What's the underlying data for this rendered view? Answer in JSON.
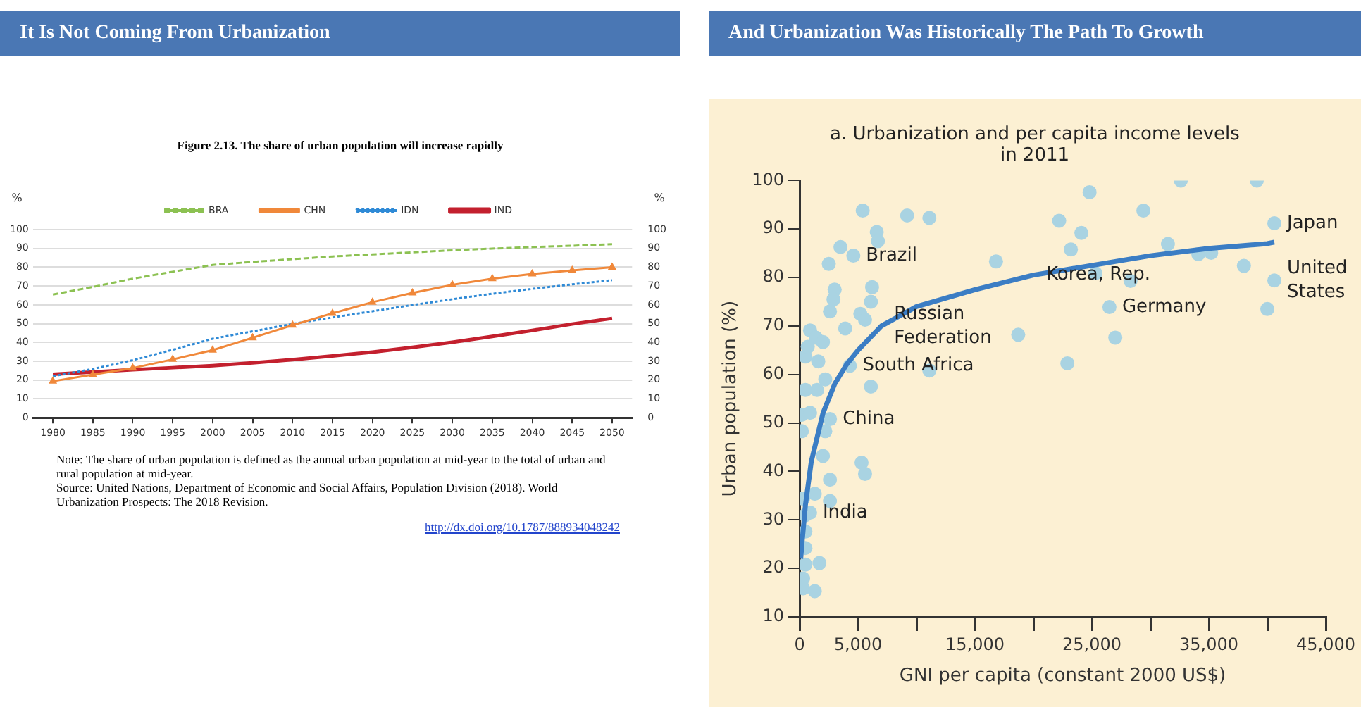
{
  "chart_data": [
    {
      "type": "line",
      "title": "It Is Not Coming From Urbanization",
      "subtitle": "Figure 2.13. The share of urban population will increase rapidly",
      "ylabel": "%",
      "y2label": "%",
      "categories": [
        "1980",
        "1985",
        "1990",
        "1995",
        "2000",
        "2005",
        "2010",
        "2015",
        "2020",
        "2025",
        "2030",
        "2035",
        "2040",
        "2045",
        "2050"
      ],
      "series": [
        {
          "name": "BRA",
          "color": "#8cc152",
          "line_style": "dashed",
          "marker": "none",
          "values": [
            65.5,
            69.5,
            73.9,
            77.6,
            81.2,
            82.8,
            84.3,
            85.7,
            86.8,
            87.9,
            89.0,
            89.9,
            90.7,
            91.4,
            92.2
          ]
        },
        {
          "name": "CHN",
          "color": "#f0883a",
          "line_style": "solid",
          "marker": "triangle",
          "values": [
            19.4,
            22.9,
            26.4,
            31.0,
            35.9,
            42.5,
            49.2,
            55.5,
            61.4,
            66.3,
            70.6,
            73.9,
            76.4,
            78.3,
            80.0
          ]
        },
        {
          "name": "IDN",
          "color": "#2f8ad6",
          "line_style": "dotted",
          "marker": "none",
          "values": [
            22.1,
            25.9,
            30.6,
            36.1,
            42.0,
            45.9,
            49.9,
            53.3,
            56.6,
            59.9,
            63.0,
            65.9,
            68.5,
            70.9,
            73.1
          ]
        },
        {
          "name": "IND",
          "color": "#c3202e",
          "line_style": "solid",
          "marker": "none",
          "values": [
            23.1,
            24.3,
            25.5,
            26.6,
            27.7,
            29.2,
            30.9,
            32.8,
            34.9,
            37.4,
            40.1,
            43.2,
            46.4,
            49.8,
            52.8
          ]
        }
      ],
      "ylim": [
        0,
        100
      ],
      "yticks": [
        0,
        10,
        20,
        30,
        40,
        50,
        60,
        70,
        80,
        90,
        100
      ],
      "y2lim": [
        0,
        100
      ],
      "y2ticks": [
        0,
        10,
        20,
        30,
        40,
        50,
        60,
        70,
        80,
        90,
        100
      ],
      "grid": "y",
      "legend": "top",
      "annotations": [
        "Note: The share of urban population is defined as the annual urban population at mid-year to the total of urban and rural population at mid-year.",
        "Source: United Nations, Department of Economic and Social Affairs, Population Division (2018). World Urbanization Prospects: The 2018 Revision.",
        "http://dx.doi.org/10.1787/888934048242"
      ]
    },
    {
      "type": "scatter",
      "title": "And Urbanization Was Historically The Path To Growth",
      "subtitle": "a. Urbanization and per capita income levels in 2011",
      "xlabel": "GNI per capita (constant 2000 US$)",
      "ylabel": "Urban population (%)",
      "series": [
        {
          "color": "#a9d3e2",
          "marker": "circle",
          "x": [
            5400,
            9200,
            11100,
            6600,
            6700,
            3500,
            4600,
            2500,
            6200,
            3000,
            2900,
            2600,
            5200,
            5600,
            6100,
            3900,
            900,
            1400,
            2000,
            500,
            1600,
            4300,
            16800,
            18700,
            22200,
            24800,
            24100,
            23200,
            25300,
            29400,
            28300,
            26500,
            27000,
            22900,
            32600,
            31500,
            34100,
            35200,
            39100,
            40600,
            38000,
            40600,
            40000,
            11100,
            700,
            1500,
            500,
            2200,
            200,
            900,
            2600,
            2200,
            200,
            2000,
            5300,
            5600,
            2600,
            300,
            1300,
            2600,
            500,
            500,
            500,
            500,
            1700,
            300,
            300,
            1300,
            6100,
            900
          ],
          "values": [
            93.8,
            92.8,
            92.3,
            89.4,
            87.5,
            86.3,
            84.5,
            82.8,
            78.0,
            77.5,
            75.5,
            73.0,
            72.5,
            71.3,
            75.0,
            69.5,
            69.1,
            67.6,
            66.7,
            63.7,
            62.7,
            61.8,
            83.3,
            68.2,
            91.7,
            97.6,
            89.2,
            85.8,
            80.9,
            93.8,
            79.3,
            73.9,
            67.6,
            62.3,
            100,
            86.9,
            84.8,
            85.1,
            100,
            91.2,
            82.4,
            79.4,
            73.5,
            60.8,
            65.7,
            56.8,
            56.8,
            59.0,
            51.7,
            52.1,
            50.8,
            48.3,
            48.3,
            43.2,
            41.8,
            39.5,
            38.3,
            34.4,
            35.4,
            33.9,
            31.0,
            27.6,
            24.2,
            20.8,
            21.1,
            17.9,
            15.9,
            15.3,
            57.5,
            31.5
          ]
        },
        {
          "type": "line",
          "color": "#3b7dc4",
          "marker": "none",
          "x": [
            100,
            200,
            500,
            1000,
            2000,
            3000,
            4000,
            5000,
            7000,
            10000,
            15000,
            20000,
            25000,
            30000,
            35000,
            40000,
            40600
          ],
          "values": [
            22,
            25,
            33,
            42,
            52,
            58,
            62,
            65,
            70,
            74,
            77.5,
            80.5,
            82.5,
            84.5,
            86,
            87,
            87.3
          ]
        }
      ],
      "xlim": [
        0,
        45000
      ],
      "xticks": [
        0,
        {
          "value": 5000,
          "label": "5,000"
        },
        {
          "value": 10000,
          "label": null
        },
        {
          "value": 15000,
          "label": "15,000"
        },
        {
          "value": 20000,
          "label": null
        },
        {
          "value": 25000,
          "label": "25,000"
        },
        {
          "value": 30000,
          "label": null
        },
        {
          "value": 35000,
          "label": "35,000"
        },
        {
          "value": 40000,
          "label": null
        },
        {
          "value": 45000,
          "label": "45,000"
        }
      ],
      "ylim": [
        10,
        100
      ],
      "yticks": [
        10,
        20,
        30,
        40,
        50,
        60,
        70,
        80,
        90,
        100
      ],
      "grid": false,
      "legend": false,
      "annotations": [
        {
          "text": "Brazil",
          "x": 4600,
          "y": 84.5
        },
        {
          "text": "Korea, Rep.",
          "x": 20000,
          "y": 80.5
        },
        {
          "text": "Russian\nFederation",
          "x": 7000,
          "y": 70
        },
        {
          "text": "Germany",
          "x": 26500,
          "y": 73.9
        },
        {
          "text": "South Africa",
          "x": 4300,
          "y": 61.8
        },
        {
          "text": "China",
          "x": 2600,
          "y": 50.8
        },
        {
          "text": "India",
          "x": 900,
          "y": 31.5
        },
        {
          "text": "Japan",
          "x": 40600,
          "y": 91.2
        },
        {
          "text": "United\nStates",
          "x": 40600,
          "y": 79.4
        }
      ]
    }
  ]
}
